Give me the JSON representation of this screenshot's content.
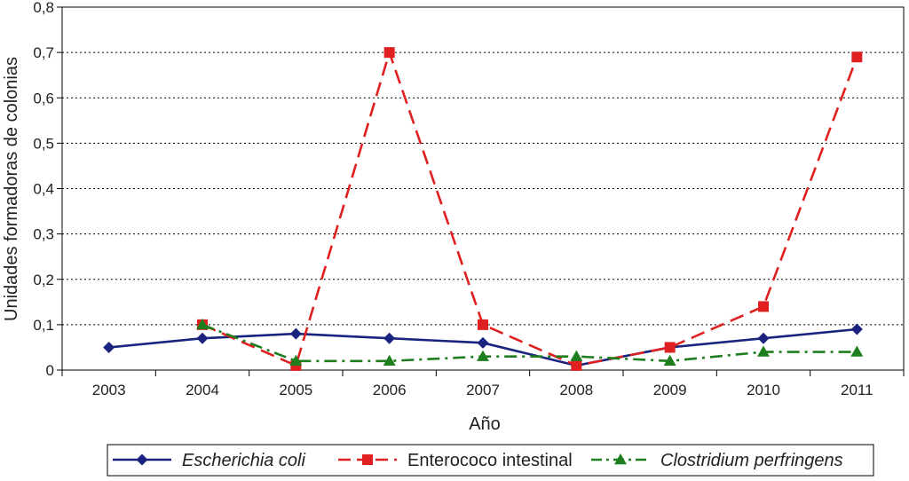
{
  "chart_data": {
    "type": "line",
    "title": "",
    "xlabel": "Año",
    "ylabel": "Unidades formadoras de colonias",
    "categories": [
      "2003",
      "2004",
      "2005",
      "2006",
      "2007",
      "2008",
      "2009",
      "2010",
      "2011"
    ],
    "y_ticks": [
      "0",
      "0,1",
      "0,2",
      "0,3",
      "0,4",
      "0,5",
      "0,6",
      "0,7",
      "0,8"
    ],
    "ylim": [
      0,
      0.8
    ],
    "grid": "horizontal dotted",
    "legend_position": "bottom",
    "series": [
      {
        "name": "Escherichia coli",
        "italic": true,
        "color": "#1a237e",
        "marker": "diamond",
        "dash": "solid",
        "values": [
          0.05,
          0.07,
          0.08,
          0.07,
          0.06,
          0.01,
          0.05,
          0.07,
          0.09
        ]
      },
      {
        "name": "Enterococo intestinal",
        "italic": false,
        "color": "#e02020",
        "marker": "square",
        "dash": "dashed",
        "values": [
          null,
          0.1,
          0.01,
          0.7,
          0.1,
          0.01,
          0.05,
          0.14,
          0.69
        ]
      },
      {
        "name": "Clostridium perfringens",
        "italic": true,
        "color": "#1e7e1e",
        "marker": "triangle",
        "dash": "dashdot",
        "values": [
          null,
          0.1,
          0.02,
          0.02,
          0.03,
          0.03,
          0.02,
          0.04,
          0.04
        ]
      }
    ]
  }
}
